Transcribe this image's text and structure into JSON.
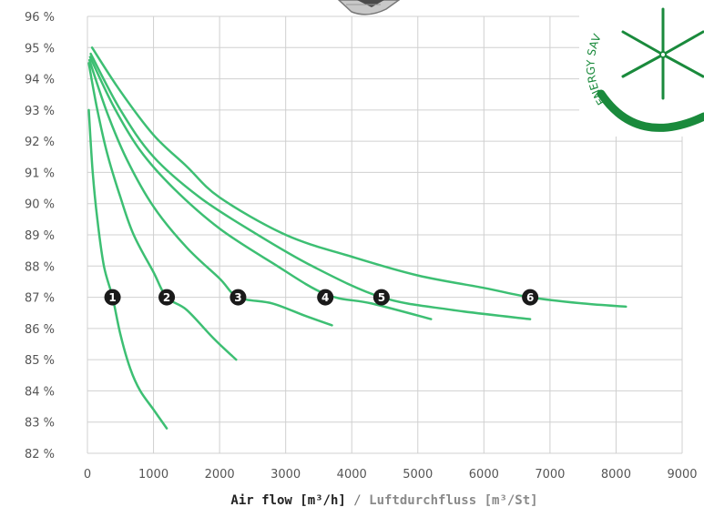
{
  "chart_data": {
    "type": "line",
    "xlabel_primary": "Air flow [m³/h]",
    "xlabel_separator": " / ",
    "xlabel_secondary": "Luftdurchfluss [m³/St]",
    "x_ticks": [
      0,
      1000,
      2000,
      3000,
      4000,
      5000,
      6000,
      7000,
      8000,
      9000
    ],
    "y_ticks": [
      "82 %",
      "83 %",
      "84 %",
      "85 %",
      "86 %",
      "87 %",
      "88 %",
      "89 %",
      "90 %",
      "91 %",
      "92 %",
      "93 %",
      "94 %",
      "95 %",
      "96 %"
    ],
    "xlim": [
      0,
      9000
    ],
    "ylim": [
      82,
      96
    ],
    "grid": true,
    "colors": {
      "line": "#3dbf73",
      "grid": "#d0d0d0",
      "marker": "#1a1a1a",
      "logo": "#1a8a3c"
    },
    "series": [
      {
        "marker": "1",
        "marker_x": 380,
        "marker_y": 87.0,
        "points": [
          [
            20,
            93.0
          ],
          [
            80,
            91.0
          ],
          [
            150,
            89.5
          ],
          [
            250,
            88.0
          ],
          [
            380,
            87.0
          ],
          [
            500,
            85.8
          ],
          [
            650,
            84.7
          ],
          [
            800,
            84.0
          ],
          [
            1000,
            83.4
          ],
          [
            1200,
            82.8
          ]
        ]
      },
      {
        "marker": "2",
        "marker_x": 1200,
        "marker_y": 87.0,
        "points": [
          [
            20,
            94.5
          ],
          [
            150,
            93.0
          ],
          [
            300,
            91.6
          ],
          [
            500,
            90.2
          ],
          [
            700,
            89.0
          ],
          [
            1000,
            87.8
          ],
          [
            1200,
            87.0
          ],
          [
            1500,
            86.6
          ],
          [
            1900,
            85.7
          ],
          [
            2250,
            85.0
          ]
        ]
      },
      {
        "marker": "3",
        "marker_x": 2280,
        "marker_y": 87.0,
        "points": [
          [
            30,
            94.6
          ],
          [
            300,
            92.9
          ],
          [
            600,
            91.4
          ],
          [
            1000,
            89.9
          ],
          [
            1500,
            88.6
          ],
          [
            2000,
            87.6
          ],
          [
            2280,
            87.0
          ],
          [
            2800,
            86.8
          ],
          [
            3300,
            86.4
          ],
          [
            3700,
            86.1
          ]
        ]
      },
      {
        "marker": "4",
        "marker_x": 3600,
        "marker_y": 87.0,
        "points": [
          [
            40,
            94.7
          ],
          [
            400,
            93.1
          ],
          [
            800,
            91.7
          ],
          [
            1300,
            90.5
          ],
          [
            2000,
            89.2
          ],
          [
            2800,
            88.1
          ],
          [
            3600,
            87.1
          ],
          [
            4300,
            86.8
          ],
          [
            5200,
            86.3
          ]
        ]
      },
      {
        "marker": "5",
        "marker_x": 4450,
        "marker_y": 87.0,
        "points": [
          [
            50,
            94.8
          ],
          [
            500,
            93.0
          ],
          [
            1000,
            91.5
          ],
          [
            1700,
            90.2
          ],
          [
            2500,
            89.1
          ],
          [
            3400,
            88.0
          ],
          [
            4450,
            87.0
          ],
          [
            5500,
            86.6
          ],
          [
            6700,
            86.3
          ]
        ]
      },
      {
        "marker": "6",
        "marker_x": 6700,
        "marker_y": 87.0,
        "points": [
          [
            70,
            95.0
          ],
          [
            500,
            93.6
          ],
          [
            1000,
            92.2
          ],
          [
            1500,
            91.2
          ],
          [
            2000,
            90.2
          ],
          [
            3000,
            89.0
          ],
          [
            4000,
            88.3
          ],
          [
            5000,
            87.7
          ],
          [
            6000,
            87.3
          ],
          [
            6700,
            87.0
          ],
          [
            7500,
            86.8
          ],
          [
            8150,
            86.7
          ]
        ]
      }
    ]
  },
  "logo": {
    "text": "ENERGY SAV"
  }
}
